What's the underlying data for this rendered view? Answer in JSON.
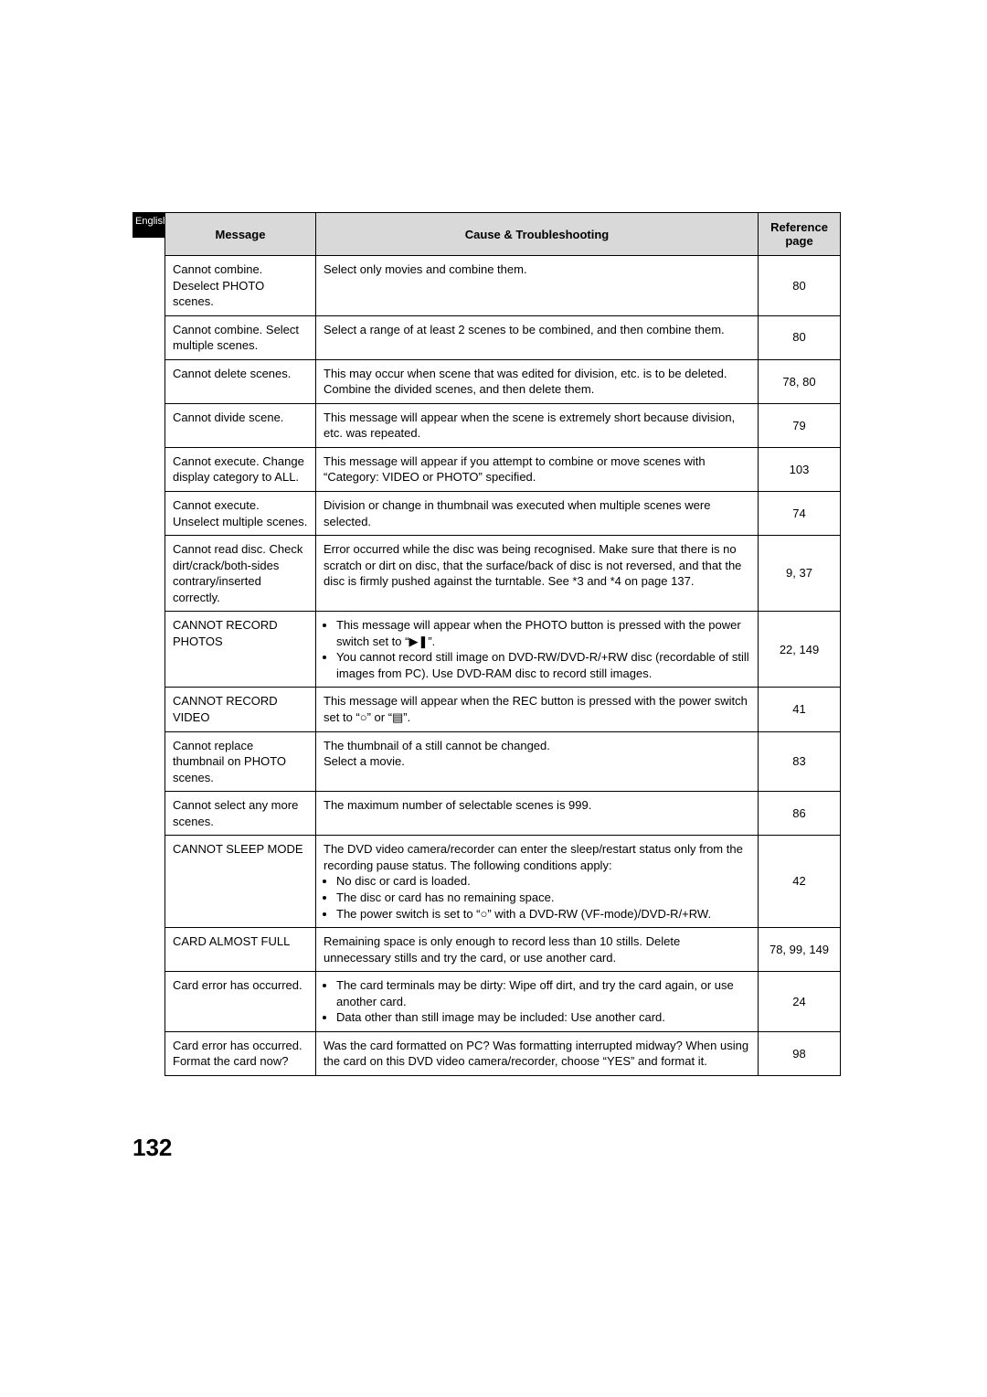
{
  "sideTab": "English",
  "pageNumber": "132",
  "headers": {
    "message": "Message",
    "cause": "Cause & Troubleshooting",
    "reference": "Reference page"
  },
  "rows": [
    {
      "message": "Cannot combine. Deselect PHOTO scenes.",
      "cause": "Select only movies and combine them.",
      "ref": "80"
    },
    {
      "message": "Cannot combine. Select multiple scenes.",
      "cause": "Select a range of at least 2 scenes to be combined, and then combine them.",
      "ref": "80"
    },
    {
      "message": "Cannot delete scenes.",
      "cause": "This may occur when scene that was edited for division, etc. is to be deleted.\nCombine the divided scenes, and then delete them.",
      "ref": "78, 80"
    },
    {
      "message": "Cannot divide scene.",
      "cause": "This message will appear when the scene is extremely short because division, etc. was repeated.",
      "ref": "79"
    },
    {
      "message": "Cannot execute. Change display category to ALL.",
      "cause": "This message will appear if you attempt to combine or move scenes with “Category: VIDEO or PHOTO” specified.",
      "ref": "103"
    },
    {
      "message": "Cannot execute. Unselect multiple scenes.",
      "cause": "Division or change in thumbnail was executed when multiple scenes were selected.",
      "ref": "74"
    },
    {
      "message": "Cannot read disc. Check dirt/crack/both-sides contrary/inserted correctly.",
      "cause": "Error occurred while the disc was being recognised. Make sure that there is no scratch or dirt on disc, that the surface/back of disc is not reversed, and that the disc is firmly pushed against the turntable. See *3 and *4 on page 137.",
      "ref": "9, 37"
    },
    {
      "message": "CANNOT RECORD PHOTOS",
      "causeBullets": [
        "This message will appear when the PHOTO button is pressed with the power switch set to “▶❚”.",
        "You cannot record still image on DVD-RW/DVD-R/+RW disc (recordable of still images from PC). Use DVD-RAM disc to record still images."
      ],
      "ref": "22, 149"
    },
    {
      "message": "CANNOT RECORD VIDEO",
      "cause": "This message will appear when the REC button is pressed with the power switch set to “○” or “▤”.",
      "ref": "41"
    },
    {
      "message": "Cannot replace thumbnail on PHOTO scenes.",
      "cause": "The thumbnail of a still cannot be changed.\nSelect a movie.",
      "ref": "83"
    },
    {
      "message": "Cannot select any more scenes.",
      "cause": "The maximum number of selectable scenes is 999.",
      "ref": "86"
    },
    {
      "message": "CANNOT SLEEP MODE",
      "causeIntro": "The DVD video camera/recorder can enter the sleep/restart status only from the recording pause status. The following conditions apply:",
      "causeBullets": [
        "No disc or card is loaded.",
        "The disc or card has no remaining space.",
        "The power switch is set to “○” with a DVD-RW (VF-mode)/DVD-R/+RW."
      ],
      "ref": "42"
    },
    {
      "message": "CARD ALMOST FULL",
      "cause": "Remaining space is only enough to record less than 10 stills. Delete unnecessary stills and try the card, or use another card.",
      "ref": "78, 99, 149"
    },
    {
      "message": "Card error has occurred.",
      "causeBullets": [
        "The card terminals may be dirty: Wipe off dirt, and try the card again, or use another card.",
        "Data other than still image may be included: Use another card."
      ],
      "ref": "24"
    },
    {
      "message": "Card error has occurred.\nFormat the card now?",
      "cause": "Was the card formatted on PC? Was formatting interrupted midway? When using the card on this DVD video camera/recorder, choose “YES” and format it.",
      "ref": "98"
    }
  ]
}
